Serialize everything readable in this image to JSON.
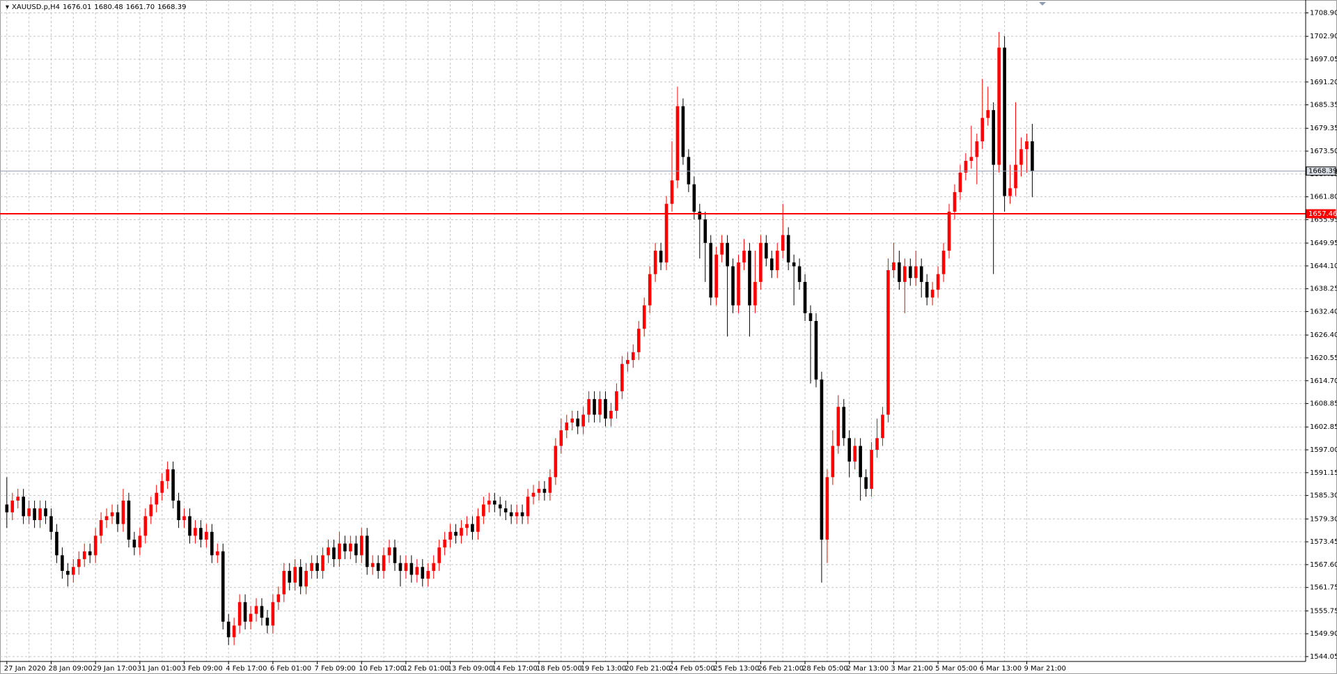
{
  "chart_data": {
    "type": "candlestick",
    "title": "XAUUSD.p,H4",
    "header_prices": [
      "1676.01",
      "1680.48",
      "1661.70",
      "1668.39"
    ],
    "up_color": "#ff0000",
    "down_color": "#000000",
    "grid": true,
    "ylim": [
      1542.8,
      1712.2
    ],
    "yticks": [
      {
        "value": 1544.05,
        "label": "1544.05"
      },
      {
        "value": 1549.9,
        "label": "1549.90"
      },
      {
        "value": 1555.75,
        "label": "1555.75"
      },
      {
        "value": 1561.75,
        "label": "1561.75"
      },
      {
        "value": 1567.6,
        "label": "1567.60"
      },
      {
        "value": 1573.45,
        "label": "1573.45"
      },
      {
        "value": 1579.3,
        "label": "1579.30"
      },
      {
        "value": 1585.3,
        "label": "1585.30"
      },
      {
        "value": 1591.15,
        "label": "1591.15"
      },
      {
        "value": 1597,
        "label": "1597.00"
      },
      {
        "value": 1602.85,
        "label": "1602.85"
      },
      {
        "value": 1608.85,
        "label": "1608.85"
      },
      {
        "value": 1614.7,
        "label": "1614.70"
      },
      {
        "value": 1620.55,
        "label": "1620.55"
      },
      {
        "value": 1626.4,
        "label": "1626.40"
      },
      {
        "value": 1632.4,
        "label": "1632.40"
      },
      {
        "value": 1638.25,
        "label": "1638.25"
      },
      {
        "value": 1644.1,
        "label": "1644.10"
      },
      {
        "value": 1649.95,
        "label": "1649.95"
      },
      {
        "value": 1655.95,
        "label": "1655.95"
      },
      {
        "value": 1661.8,
        "label": "1661.80"
      },
      {
        "value": 1667.65,
        "label": "1667.65"
      },
      {
        "value": 1673.5,
        "label": "1673.50"
      },
      {
        "value": 1679.35,
        "label": "1679.35"
      },
      {
        "value": 1685.35,
        "label": "1685.35"
      },
      {
        "value": 1691.2,
        "label": "1691.20"
      },
      {
        "value": 1697.05,
        "label": "1697.05"
      },
      {
        "value": 1702.9,
        "label": "1702.90"
      },
      {
        "value": 1708.9,
        "label": "1708.90"
      }
    ],
    "price_lines": [
      {
        "value": 1668.39,
        "label": "1668.39",
        "color": "#8c9bb0"
      },
      {
        "value": 1657.46,
        "label": "1657.46",
        "color": "#ff0000"
      }
    ],
    "categories": [
      "27 Jan 2020",
      null,
      null,
      null,
      null,
      null,
      null,
      null,
      "28 Jan 09:00",
      null,
      null,
      null,
      null,
      null,
      null,
      null,
      "29 Jan 17:00",
      null,
      null,
      null,
      null,
      null,
      null,
      null,
      "31 Jan 01:00",
      null,
      null,
      null,
      null,
      null,
      null,
      null,
      "3 Feb 09:00",
      null,
      null,
      null,
      null,
      null,
      null,
      null,
      "4 Feb 17:00",
      null,
      null,
      null,
      null,
      null,
      null,
      null,
      "6 Feb 01:00",
      null,
      null,
      null,
      null,
      null,
      null,
      null,
      "7 Feb 09:00",
      null,
      null,
      null,
      null,
      null,
      null,
      null,
      "10 Feb 17:00",
      null,
      null,
      null,
      null,
      null,
      null,
      null,
      "12 Feb 01:00",
      null,
      null,
      null,
      null,
      null,
      null,
      null,
      "13 Feb 09:00",
      null,
      null,
      null,
      null,
      null,
      null,
      null,
      "14 Feb 17:00",
      null,
      null,
      null,
      null,
      null,
      null,
      null,
      "18 Feb 05:00",
      null,
      null,
      null,
      null,
      null,
      null,
      null,
      "19 Feb 13:00",
      null,
      null,
      null,
      null,
      null,
      null,
      null,
      "20 Feb 21:00",
      null,
      null,
      null,
      null,
      null,
      null,
      null,
      "24 Feb 05:00",
      null,
      null,
      null,
      null,
      null,
      null,
      null,
      "25 Feb 13:00",
      null,
      null,
      null,
      null,
      null,
      null,
      null,
      "26 Feb 21:00",
      null,
      null,
      null,
      null,
      null,
      null,
      null,
      "28 Feb 05:00",
      null,
      null,
      null,
      null,
      null,
      null,
      null,
      "2 Mar 13:00",
      null,
      null,
      null,
      null,
      null,
      null,
      null,
      "3 Mar 21:00",
      null,
      null,
      null,
      null,
      null,
      null,
      null,
      "5 Mar 05:00",
      null,
      null,
      null,
      null,
      null,
      null,
      null,
      "6 Mar 13:00",
      null,
      null,
      null,
      null,
      null,
      null,
      null,
      "9 Mar 21:00",
      null
    ],
    "open": [
      1583,
      1581,
      1584,
      1585,
      1580,
      1582,
      1579,
      1582,
      1580,
      1576,
      1570,
      1566,
      1565,
      1567,
      1569,
      1571,
      1570,
      1575,
      1579,
      1580,
      1581,
      1578,
      1584,
      1574,
      1572,
      1575,
      1580,
      1583,
      1586,
      1589,
      1592,
      1584,
      1579,
      1580,
      1575,
      1577,
      1574,
      1576,
      1570,
      1571,
      1553,
      1549,
      1552,
      1558,
      1553,
      1555,
      1557,
      1554,
      1552,
      1558,
      1560,
      1566,
      1563,
      1567,
      1562,
      1566,
      1568,
      1566,
      1570,
      1572,
      1569,
      1573,
      1571,
      1573,
      1570,
      1575,
      1567,
      1568,
      1566,
      1570,
      1572,
      1568,
      1566,
      1568,
      1565,
      1567,
      1564,
      1566,
      1568,
      1572,
      1574,
      1576,
      1575,
      1577,
      1578,
      1576,
      1580,
      1583,
      1584,
      1583,
      1582,
      1581,
      1580,
      1581,
      1580,
      1585,
      1586,
      1587,
      1586,
      1590,
      1598,
      1602,
      1604,
      1605,
      1603,
      1606,
      1610,
      1606,
      1610,
      1605,
      1607,
      1612,
      1619,
      1620,
      1622,
      1628,
      1634,
      1642,
      1648,
      1645,
      1660,
      1666,
      1685,
      1672,
      1665,
      1658,
      1656,
      1650,
      1636,
      1647,
      1650,
      1644,
      1634,
      1645,
      1648,
      1634,
      1640,
      1650,
      1646,
      1643,
      1648,
      1652,
      1645,
      1644,
      1640,
      1632,
      1630,
      1615,
      1574,
      1590,
      1598,
      1608,
      1600,
      1594,
      1598,
      1590,
      1587,
      1597,
      1600,
      1606,
      1643,
      1645,
      1640,
      1644,
      1641,
      1644,
      1640,
      1636,
      1638,
      1642,
      1648,
      1658,
      1663,
      1668,
      1671,
      1672,
      1676,
      1682,
      1684,
      1670,
      1700,
      1662,
      1664,
      1670,
      1674,
      1676.01
    ],
    "high": [
      1590,
      1586,
      1587,
      1587,
      1584,
      1584,
      1584,
      1584,
      1582,
      1578,
      1572,
      1568,
      1569,
      1571,
      1573,
      1573,
      1577,
      1581,
      1582,
      1583,
      1583,
      1587,
      1586,
      1576,
      1577,
      1582,
      1585,
      1588,
      1591,
      1594,
      1594,
      1586,
      1582,
      1582,
      1579,
      1579,
      1578,
      1578,
      1573,
      1573,
      1555,
      1554,
      1560,
      1560,
      1557,
      1559,
      1559,
      1556,
      1560,
      1562,
      1568,
      1568,
      1569,
      1569,
      1568,
      1570,
      1570,
      1572,
      1574,
      1574,
      1576,
      1575,
      1575,
      1575,
      1577,
      1577,
      1570,
      1570,
      1572,
      1574,
      1574,
      1570,
      1570,
      1570,
      1569,
      1569,
      1568,
      1570,
      1574,
      1576,
      1578,
      1578,
      1579,
      1580,
      1580,
      1582,
      1585,
      1586,
      1586,
      1585,
      1584,
      1583,
      1583,
      1583,
      1587,
      1588,
      1589,
      1589,
      1592,
      1600,
      1605,
      1606,
      1607,
      1607,
      1608,
      1612,
      1612,
      1612,
      1612,
      1609,
      1614,
      1621,
      1622,
      1624,
      1630,
      1636,
      1644,
      1650,
      1650,
      1662,
      1676,
      1690,
      1687,
      1674,
      1667,
      1660,
      1658,
      1652,
      1649,
      1652,
      1652,
      1646,
      1647,
      1651,
      1650,
      1648,
      1652,
      1652,
      1648,
      1650,
      1660,
      1654,
      1647,
      1646,
      1642,
      1634,
      1632,
      1617,
      1592,
      1602,
      1611,
      1610,
      1602,
      1600,
      1600,
      1592,
      1599,
      1605,
      1608,
      1646,
      1650,
      1648,
      1646,
      1646,
      1648,
      1646,
      1642,
      1640,
      1644,
      1650,
      1660,
      1665,
      1670,
      1673,
      1680,
      1678,
      1692,
      1690,
      1686,
      1704,
      1703,
      1670,
      1686,
      1677,
      1678,
      1680.48
    ],
    "low": [
      1577,
      1579,
      1582,
      1578,
      1578,
      1577,
      1577,
      1578,
      1574,
      1568,
      1564,
      1562,
      1563,
      1565,
      1567,
      1568,
      1568,
      1573,
      1577,
      1578,
      1576,
      1576,
      1572,
      1570,
      1570,
      1573,
      1578,
      1581,
      1584,
      1587,
      1582,
      1577,
      1577,
      1573,
      1573,
      1572,
      1572,
      1568,
      1568,
      1551,
      1547,
      1547,
      1550,
      1551,
      1551,
      1553,
      1552,
      1550,
      1550,
      1556,
      1558,
      1561,
      1561,
      1560,
      1560,
      1564,
      1564,
      1564,
      1568,
      1567,
      1567,
      1569,
      1569,
      1568,
      1568,
      1565,
      1565,
      1564,
      1564,
      1568,
      1566,
      1562,
      1564,
      1563,
      1563,
      1562,
      1562,
      1564,
      1566,
      1570,
      1572,
      1573,
      1573,
      1575,
      1574,
      1574,
      1578,
      1581,
      1581,
      1580,
      1579,
      1578,
      1578,
      1578,
      1578,
      1583,
      1584,
      1584,
      1584,
      1588,
      1596,
      1600,
      1602,
      1601,
      1601,
      1604,
      1604,
      1604,
      1603,
      1603,
      1605,
      1610,
      1617,
      1618,
      1620,
      1626,
      1632,
      1640,
      1643,
      1643,
      1658,
      1664,
      1670,
      1663,
      1656,
      1646,
      1640,
      1634,
      1634,
      1645,
      1626,
      1632,
      1632,
      1643,
      1626,
      1632,
      1638,
      1644,
      1641,
      1641,
      1646,
      1643,
      1634,
      1638,
      1630,
      1614,
      1613,
      1563,
      1568,
      1588,
      1596,
      1598,
      1590,
      1592,
      1584,
      1585,
      1585,
      1595,
      1598,
      1604,
      1641,
      1638,
      1632,
      1639,
      1639,
      1636,
      1634,
      1634,
      1636,
      1640,
      1646,
      1656,
      1661,
      1666,
      1669,
      1665,
      1674,
      1680,
      1642,
      1668,
      1658,
      1660,
      1662,
      1667,
      1668,
      1661.7
    ],
    "close": [
      1581,
      1584,
      1585,
      1580,
      1582,
      1579,
      1582,
      1580,
      1576,
      1570,
      1566,
      1565,
      1567,
      1569,
      1571,
      1570,
      1575,
      1579,
      1580,
      1581,
      1578,
      1584,
      1574,
      1572,
      1575,
      1580,
      1583,
      1586,
      1589,
      1592,
      1584,
      1579,
      1580,
      1575,
      1577,
      1574,
      1576,
      1570,
      1571,
      1553,
      1549,
      1552,
      1558,
      1553,
      1555,
      1557,
      1554,
      1552,
      1558,
      1560,
      1566,
      1563,
      1567,
      1562,
      1566,
      1568,
      1566,
      1570,
      1572,
      1569,
      1573,
      1571,
      1573,
      1570,
      1575,
      1567,
      1568,
      1566,
      1570,
      1572,
      1568,
      1566,
      1568,
      1565,
      1567,
      1564,
      1566,
      1568,
      1572,
      1574,
      1576,
      1575,
      1577,
      1578,
      1576,
      1580,
      1583,
      1584,
      1583,
      1582,
      1581,
      1580,
      1581,
      1580,
      1585,
      1586,
      1587,
      1586,
      1590,
      1598,
      1602,
      1604,
      1605,
      1603,
      1606,
      1610,
      1606,
      1610,
      1605,
      1607,
      1612,
      1619,
      1620,
      1622,
      1628,
      1634,
      1642,
      1648,
      1645,
      1660,
      1666,
      1685,
      1672,
      1665,
      1658,
      1656,
      1650,
      1636,
      1647,
      1650,
      1644,
      1634,
      1645,
      1648,
      1634,
      1640,
      1650,
      1646,
      1643,
      1648,
      1652,
      1645,
      1644,
      1640,
      1632,
      1630,
      1615,
      1574,
      1590,
      1598,
      1608,
      1600,
      1594,
      1598,
      1590,
      1587,
      1597,
      1600,
      1606,
      1643,
      1645,
      1640,
      1644,
      1641,
      1644,
      1640,
      1636,
      1638,
      1642,
      1648,
      1658,
      1663,
      1668,
      1671,
      1672,
      1676,
      1682,
      1684,
      1670,
      1700,
      1662,
      1664,
      1670,
      1674,
      1676.01,
      1668.39
    ]
  }
}
